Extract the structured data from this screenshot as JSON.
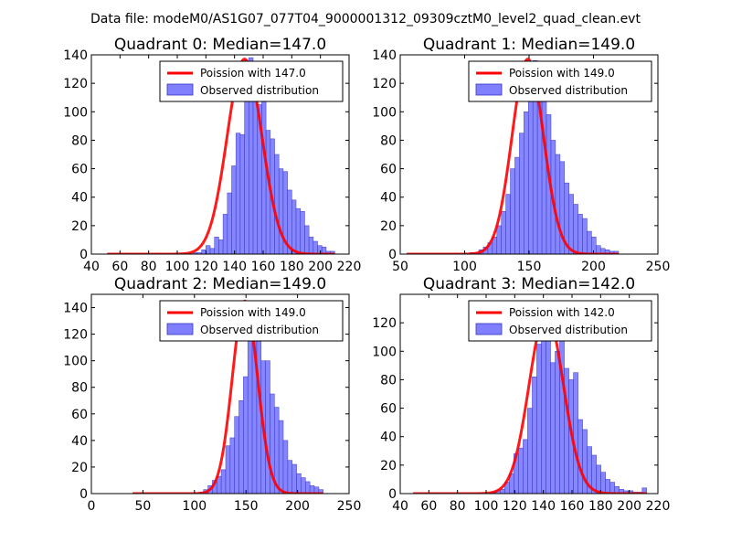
{
  "figure": {
    "suptitle": "Data file: modeM0/AS1G07_077T04_9000001312_09309cztM0_level2_quad_clean.evt"
  },
  "colors": {
    "hist_fill": "#7f7fff",
    "hist_edge": "#3333cc",
    "poisson_line": "#ff0000",
    "axes": "#000000"
  },
  "chart_data": [
    {
      "type": "bar",
      "id": "q0",
      "title": "Quadrant 0: Median=147.0",
      "xlim": [
        40,
        220
      ],
      "ylim": [
        0,
        140
      ],
      "xticks": [
        40,
        60,
        80,
        100,
        120,
        140,
        160,
        180,
        200,
        220
      ],
      "yticks": [
        0,
        20,
        40,
        60,
        80,
        100,
        120,
        140
      ],
      "legend": {
        "placement": "top-right",
        "entries": [
          "Poission with 147.0",
          "Observed distribution"
        ]
      },
      "bin_width": 3.0,
      "hist_start": 51,
      "counts": [
        0,
        0,
        0,
        0,
        0,
        0,
        0,
        0,
        0,
        0,
        0,
        0,
        0,
        0,
        0,
        0,
        0,
        0,
        0,
        0,
        1,
        1,
        3,
        6,
        4,
        12,
        10,
        28,
        43,
        62,
        85,
        84,
        120,
        138,
        126,
        105,
        118,
        87,
        81,
        70,
        60,
        58,
        45,
        38,
        32,
        30,
        20,
        12,
        9,
        6,
        5,
        2,
        2
      ],
      "poisson_mean": 147.0,
      "poisson_peak": 137,
      "series": [
        {
          "name": "Poission with 147.0",
          "kind": "line"
        },
        {
          "name": "Observed distribution",
          "kind": "histogram"
        }
      ]
    },
    {
      "type": "bar",
      "id": "q1",
      "title": "Quadrant 1: Median=149.0",
      "xlim": [
        50,
        250
      ],
      "ylim": [
        0,
        140
      ],
      "xticks": [
        50,
        100,
        150,
        200,
        250
      ],
      "yticks": [
        0,
        20,
        40,
        60,
        80,
        100,
        120,
        140
      ],
      "legend": {
        "placement": "top-right",
        "entries": [
          "Poission with 149.0",
          "Observed distribution"
        ]
      },
      "bin_width": 3.5,
      "hist_start": 55,
      "counts": [
        0,
        0,
        0,
        0,
        0,
        0,
        0,
        0,
        0,
        0,
        0,
        0,
        0,
        0,
        1,
        1,
        3,
        5,
        8,
        12,
        20,
        30,
        42,
        60,
        68,
        85,
        100,
        115,
        136,
        128,
        110,
        98,
        80,
        70,
        65,
        50,
        42,
        35,
        28,
        25,
        16,
        12,
        6,
        4,
        3,
        2,
        2
      ],
      "poisson_mean": 149.0,
      "poisson_peak": 137,
      "series": [
        {
          "name": "Poission with 149.0",
          "kind": "line"
        },
        {
          "name": "Observed distribution",
          "kind": "histogram"
        }
      ]
    },
    {
      "type": "bar",
      "id": "q2",
      "title": "Quadrant 2: Median=149.0",
      "xlim": [
        0,
        250
      ],
      "ylim": [
        0,
        150
      ],
      "xticks": [
        0,
        50,
        100,
        150,
        200,
        250
      ],
      "yticks": [
        0,
        20,
        40,
        60,
        80,
        100,
        120,
        140
      ],
      "legend": {
        "placement": "top-right",
        "entries": [
          "Poission with 149.0",
          "Observed distribution"
        ]
      },
      "bin_width": 4.3,
      "hist_start": 40,
      "counts": [
        0,
        0,
        0,
        0,
        0,
        0,
        0,
        0,
        0,
        0,
        0,
        0,
        0,
        0,
        0,
        1,
        3,
        6,
        10,
        13,
        18,
        36,
        42,
        58,
        70,
        88,
        115,
        135,
        120,
        100,
        100,
        75,
        65,
        55,
        40,
        25,
        22,
        15,
        12,
        9,
        6,
        5,
        3
      ],
      "poisson_mean": 149.0,
      "poisson_peak": 145,
      "series": [
        {
          "name": "Poission with 149.0",
          "kind": "line"
        },
        {
          "name": "Observed distribution",
          "kind": "histogram"
        }
      ]
    },
    {
      "type": "bar",
      "id": "q3",
      "title": "Quadrant 3: Median=142.0",
      "xlim": [
        40,
        220
      ],
      "ylim": [
        0,
        140
      ],
      "xticks": [
        40,
        60,
        80,
        100,
        120,
        140,
        160,
        180,
        200,
        220
      ],
      "yticks": [
        0,
        20,
        40,
        60,
        80,
        100,
        120
      ],
      "legend": {
        "placement": "top-right",
        "entries": [
          "Poission with 142.0",
          "Observed distribution"
        ]
      },
      "bin_width": 3.2,
      "hist_start": 49,
      "counts": [
        0,
        0,
        0,
        0,
        0,
        0,
        0,
        0,
        0,
        0,
        0,
        0,
        0,
        0,
        0,
        0,
        0,
        1,
        2,
        3,
        8,
        14,
        28,
        32,
        38,
        60,
        82,
        105,
        125,
        110,
        92,
        100,
        118,
        88,
        80,
        85,
        52,
        45,
        33,
        27,
        20,
        15,
        10,
        8,
        5,
        3,
        2,
        2,
        1,
        1,
        4
      ],
      "poisson_mean": 142.0,
      "poisson_peak": 127,
      "series": [
        {
          "name": "Poission with 142.0",
          "kind": "line"
        },
        {
          "name": "Observed distribution",
          "kind": "histogram"
        }
      ]
    }
  ]
}
